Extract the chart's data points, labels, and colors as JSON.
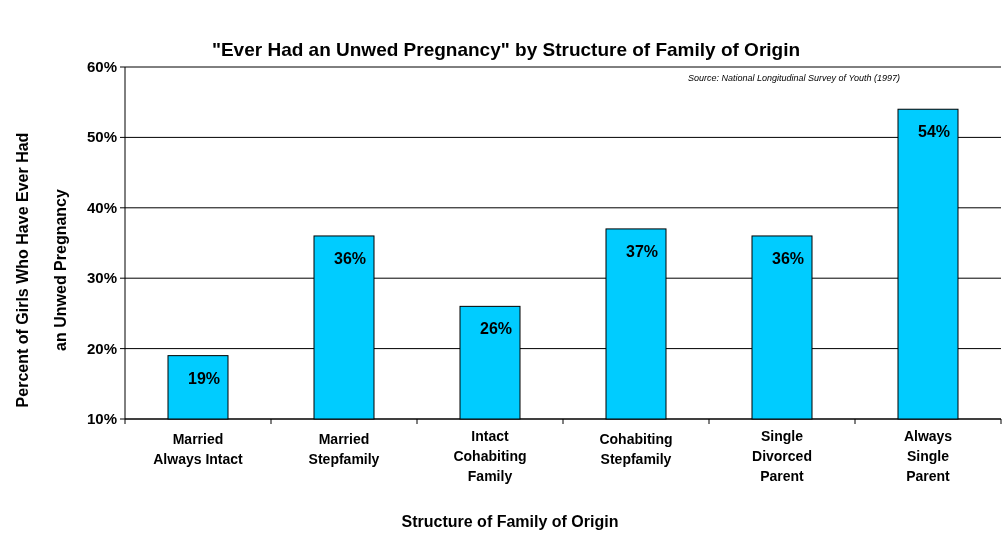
{
  "chart_data": {
    "type": "bar",
    "title": "\"Ever Had an Unwed Pregnancy\" by Structure of Family of Origin",
    "annotations": [
      "Source: National Longitudinal Survey of Youth (1997)"
    ],
    "xlabel": "Structure of Family of Origin",
    "ylabel": "Percent of Girls Who Have Ever Had\nan Unwed Pregnancy",
    "categories": [
      "Married\nAlways Intact",
      "Married\nStepfamily",
      "Intact\nCohabiting\nFamily",
      "Cohabiting\nStepfamily",
      "Single\nDivorced\nParent",
      "Always\nSingle\nParent"
    ],
    "values": [
      19,
      36,
      26,
      37,
      36,
      54
    ],
    "value_labels": [
      "19%",
      "36%",
      "26%",
      "37%",
      "36%",
      "54%"
    ],
    "color": "#00ccff",
    "ylim": [
      10,
      60
    ],
    "yticks": [
      {
        "value": 10,
        "label": "10%"
      },
      {
        "value": 20,
        "label": "20%"
      },
      {
        "value": 30,
        "label": "30%"
      },
      {
        "value": 40,
        "label": "40%"
      },
      {
        "value": 50,
        "label": "50%"
      },
      {
        "value": 60,
        "label": "60%"
      }
    ],
    "grid": "y"
  }
}
